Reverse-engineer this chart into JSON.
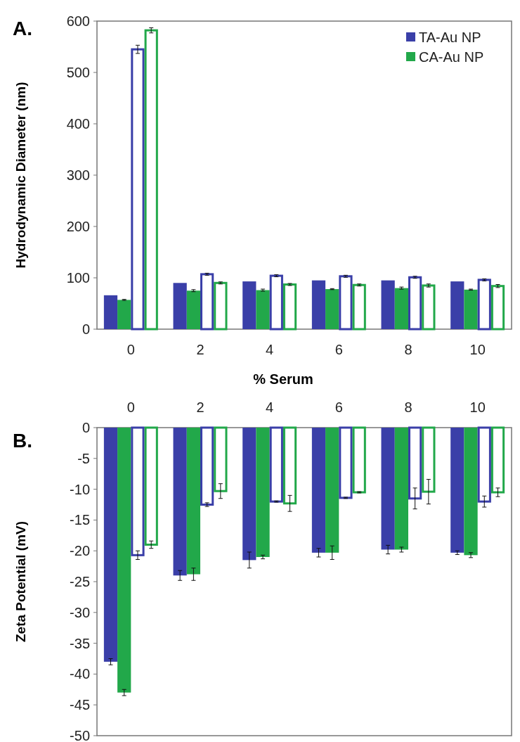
{
  "chart_data": [
    {
      "type": "bar",
      "title": "A.",
      "xlabel": "% Serum",
      "ylabel": "Hydrodynamic Diameter (nm)",
      "categories": [
        "0",
        "2",
        "4",
        "6",
        "8",
        "10"
      ],
      "ylim": [
        0,
        600
      ],
      "yticks": [
        0,
        100,
        200,
        300,
        400,
        500,
        600
      ],
      "legend": "top right",
      "series": [
        {
          "name": "TA-Au NP",
          "color": "#3a3fa8",
          "values": [
            66,
            90,
            93,
            95,
            95,
            93
          ]
        },
        {
          "name": "CA-Au NP",
          "color": "#22a84a",
          "values": [
            57,
            75,
            76,
            78,
            80,
            77
          ],
          "errors": [
            1,
            2,
            2,
            1,
            2,
            1
          ]
        },
        {
          "color": "#3a3fa8",
          "values": [
            545,
            107,
            104,
            103,
            101,
            96
          ],
          "errors": [
            8,
            2,
            2,
            2,
            2,
            2
          ]
        },
        {
          "color": "#22a84a",
          "values": [
            582,
            90,
            87,
            86,
            85,
            84
          ],
          "errors": [
            5,
            2,
            2,
            2,
            3,
            3
          ]
        }
      ]
    },
    {
      "type": "bar",
      "title": "B.",
      "ylabel": "Zeta Potential (mV)",
      "categories": [
        "0",
        "2",
        "4",
        "6",
        "8",
        "10"
      ],
      "ylim": [
        -50,
        0
      ],
      "yticks": [
        -50,
        -45,
        -40,
        -35,
        -30,
        -25,
        -20,
        -15,
        -10,
        -5,
        0
      ],
      "series": [
        {
          "color": "#3a3fa8",
          "values": [
            -38,
            -24,
            -21.5,
            -20.3,
            -19.8,
            -20.3
          ],
          "errors": [
            0.5,
            0.8,
            1.3,
            0.7,
            0.7,
            0.3
          ]
        },
        {
          "color": "#22a84a",
          "values": [
            -43,
            -23.8,
            -21,
            -20.3,
            -19.8,
            -20.7
          ],
          "errors": [
            0.5,
            1,
            0.3,
            1.1,
            0.4,
            0.4
          ]
        },
        {
          "color": "#3a3fa8",
          "values": [
            -20.7,
            -12.5,
            -12,
            -11.4,
            -11.5,
            -12
          ],
          "errors": [
            0.7,
            0.3,
            0.1,
            0.1,
            1.7,
            0.9
          ]
        },
        {
          "color": "#22a84a",
          "values": [
            -19,
            -10.3,
            -12.3,
            -10.5,
            -10.4,
            -10.5
          ],
          "errors": [
            0.6,
            1.2,
            1.3,
            0.1,
            2,
            0.7
          ]
        }
      ]
    }
  ]
}
